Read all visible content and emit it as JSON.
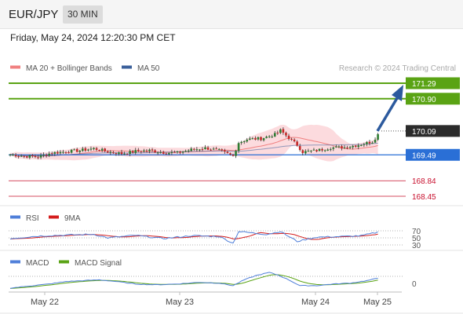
{
  "header": {
    "symbol": "EUR/JPY",
    "interval": "30 MIN",
    "datetime": "Friday, May 24, 2024 12:20:30 PM CET"
  },
  "colors": {
    "bull": "#2e7d32",
    "bear": "#c62828",
    "ma20": "#f08080",
    "band_fill": "#fbd5d8",
    "ma50": "#3a5f9a",
    "level_green": "#5aa314",
    "level_blue": "#2a6fd6",
    "level_red": "#c8102e",
    "last_price": "#2b2b2b",
    "rsi": "#4f7fd9",
    "rsi_ma": "#d41d1d",
    "macd": "#4f7fd9",
    "macd_signal": "#5aa314",
    "arrow": "#2c5a9e"
  },
  "chart_data": [
    {
      "type": "candlestick",
      "legend": [
        {
          "name": "MA 20 + Bollinger Bands",
          "color": "#f08080"
        },
        {
          "name": "MA 50",
          "color": "#3a5f9a"
        }
      ],
      "legend_placement": "top-left",
      "watermark": "Research © 2024 Trading Central",
      "x_ticks": [
        "May 22",
        "May 23",
        "May 24",
        "May 25"
      ],
      "y_range": [
        168.35,
        171.45
      ],
      "ohlc_close_anchors": [
        [
          0,
          169.5
        ],
        [
          5,
          169.46
        ],
        [
          10,
          169.44
        ],
        [
          15,
          169.54
        ],
        [
          20,
          169.57
        ],
        [
          25,
          169.6
        ],
        [
          30,
          169.65
        ],
        [
          35,
          169.57
        ],
        [
          40,
          169.52
        ],
        [
          45,
          169.58
        ],
        [
          50,
          169.6
        ],
        [
          55,
          169.55
        ],
        [
          60,
          169.54
        ],
        [
          65,
          169.62
        ],
        [
          70,
          169.66
        ],
        [
          75,
          169.6
        ],
        [
          80,
          169.46
        ],
        [
          82,
          169.8
        ],
        [
          85,
          169.88
        ],
        [
          90,
          169.9
        ],
        [
          95,
          170.0
        ],
        [
          97,
          170.1
        ],
        [
          100,
          169.92
        ],
        [
          103,
          169.74
        ],
        [
          105,
          169.56
        ],
        [
          110,
          169.6
        ],
        [
          115,
          169.67
        ],
        [
          120,
          169.68
        ],
        [
          125,
          169.74
        ],
        [
          130,
          169.82
        ],
        [
          132,
          170.0
        ]
      ],
      "levels": [
        {
          "value": 171.29,
          "label": "171.29",
          "kind": "resistance"
        },
        {
          "value": 170.9,
          "label": "170.90",
          "kind": "resistance"
        },
        {
          "value": 170.09,
          "label": "170.09",
          "kind": "last"
        },
        {
          "value": 169.49,
          "label": "169.49",
          "kind": "pivot"
        },
        {
          "value": 168.84,
          "label": "168.84",
          "kind": "support"
        },
        {
          "value": 168.45,
          "label": "168.45",
          "kind": "support"
        }
      ],
      "projection": {
        "from": 170.09,
        "to": 171.29
      }
    },
    {
      "type": "line",
      "series": [
        {
          "name": "RSI",
          "color": "#4f7fd9"
        },
        {
          "name": "9MA",
          "color": "#d41d1d"
        }
      ],
      "y_ticks": [
        "70",
        "50",
        "30"
      ],
      "rsi_anchors": [
        [
          0,
          48
        ],
        [
          10,
          55
        ],
        [
          20,
          58
        ],
        [
          30,
          60
        ],
        [
          35,
          50
        ],
        [
          45,
          57
        ],
        [
          55,
          48
        ],
        [
          65,
          56
        ],
        [
          75,
          54
        ],
        [
          80,
          35
        ],
        [
          82,
          68
        ],
        [
          88,
          63
        ],
        [
          92,
          60
        ],
        [
          97,
          68
        ],
        [
          103,
          40
        ],
        [
          110,
          52
        ],
        [
          120,
          54
        ],
        [
          126,
          56
        ],
        [
          132,
          66
        ]
      ]
    },
    {
      "type": "line",
      "series": [
        {
          "name": "MACD",
          "color": "#4f7fd9"
        },
        {
          "name": "MACD Signal",
          "color": "#5aa314"
        }
      ],
      "y_ticks": [
        "0"
      ],
      "macd_anchors": [
        [
          0,
          0.0
        ],
        [
          8,
          0.03
        ],
        [
          14,
          0.05
        ],
        [
          20,
          0.08
        ],
        [
          26,
          0.09
        ],
        [
          32,
          0.1
        ],
        [
          38,
          0.08
        ],
        [
          45,
          0.05
        ],
        [
          52,
          0.04
        ],
        [
          60,
          0.05
        ],
        [
          68,
          0.07
        ],
        [
          75,
          0.06
        ],
        [
          80,
          0.03
        ],
        [
          84,
          0.1
        ],
        [
          88,
          0.15
        ],
        [
          93,
          0.19
        ],
        [
          96,
          0.16
        ],
        [
          100,
          0.1
        ],
        [
          104,
          0.03
        ],
        [
          110,
          0.03
        ],
        [
          116,
          0.05
        ],
        [
          122,
          0.06
        ],
        [
          128,
          0.09
        ],
        [
          132,
          0.12
        ]
      ]
    }
  ]
}
